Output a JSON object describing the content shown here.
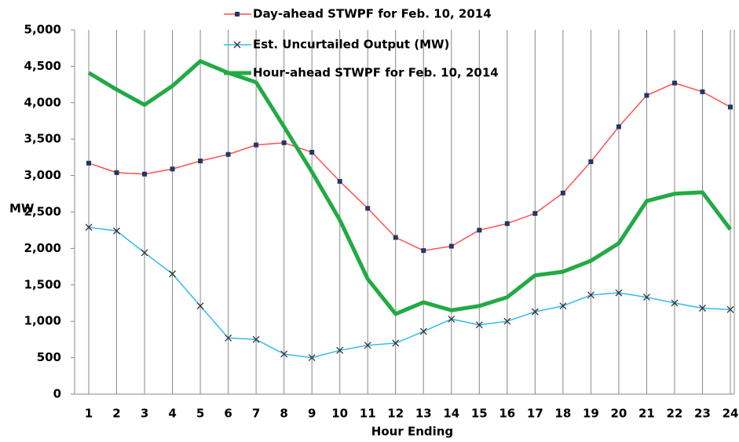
{
  "chart_data": {
    "type": "line",
    "x_label": "Hour Ending",
    "y_label": "MW",
    "categories": [
      "1",
      "2",
      "3",
      "4",
      "5",
      "6",
      "7",
      "8",
      "9",
      "10",
      "11",
      "12",
      "13",
      "14",
      "15",
      "16",
      "17",
      "18",
      "19",
      "20",
      "21",
      "22",
      "23",
      "24"
    ],
    "series": [
      {
        "name": "Day-ahead STWPF for Feb. 10, 2014",
        "color": "#ff5050",
        "marker": "square",
        "marker_color": "#1f3864",
        "width": 1.5,
        "values": [
          3170,
          3040,
          3020,
          3090,
          3200,
          3290,
          3420,
          3450,
          3320,
          2920,
          2550,
          2150,
          1970,
          2030,
          2250,
          2340,
          2480,
          2760,
          3190,
          3670,
          4100,
          4270,
          4150,
          3940
        ]
      },
      {
        "name": "Est. Uncurtailed Output (MW)",
        "color": "#33bbee",
        "marker": "x",
        "marker_color": "#333333",
        "width": 1.5,
        "values": [
          2290,
          2240,
          1940,
          1650,
          1210,
          770,
          750,
          550,
          500,
          600,
          670,
          700,
          860,
          1030,
          950,
          1000,
          1130,
          1210,
          1360,
          1390,
          1330,
          1250,
          1180,
          1160
        ]
      },
      {
        "name": "Hour-ahead STWPF for Feb. 10, 2014",
        "color": "#22aa44",
        "marker": "none",
        "marker_color": "#22aa44",
        "width": 5,
        "values": [
          4410,
          4180,
          3970,
          4230,
          4570,
          4410,
          4280,
          3670,
          3050,
          2390,
          1580,
          1100,
          1260,
          1150,
          1210,
          1330,
          1630,
          1680,
          1830,
          2070,
          2650,
          2750,
          2770,
          2260
        ]
      }
    ],
    "ylim": [
      0,
      5000
    ],
    "yticks": [
      0,
      500,
      {
        "value": 1000,
        "label": "1,000"
      },
      {
        "value": 1500,
        "label": "1,500"
      },
      {
        "value": 2000,
        "label": "2,000"
      },
      {
        "value": 2500,
        "label": "2,500"
      },
      {
        "value": 3000,
        "label": "3,000"
      },
      {
        "value": 3500,
        "label": "3,500"
      },
      {
        "value": 4000,
        "label": "4,000"
      },
      {
        "value": 4500,
        "label": "4,500"
      },
      {
        "value": 5000,
        "label": "5,000"
      }
    ],
    "vertical_grid": true
  }
}
